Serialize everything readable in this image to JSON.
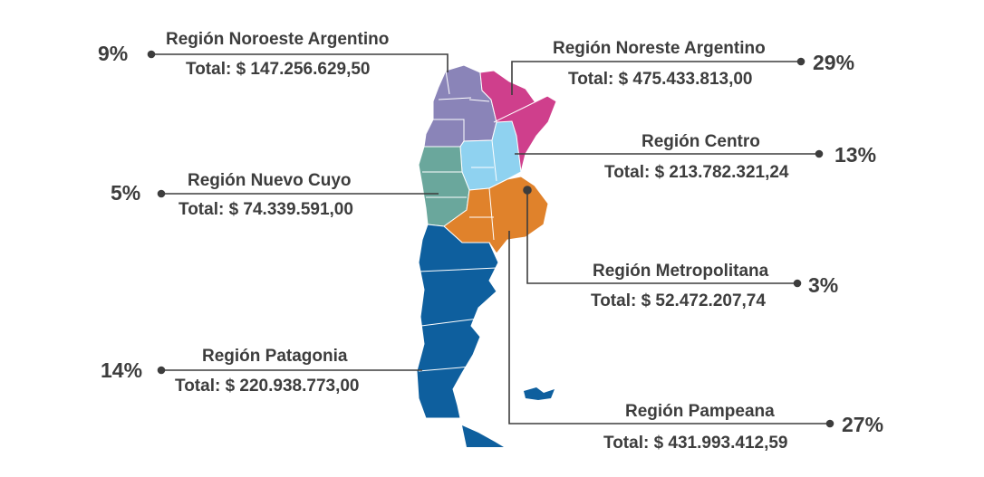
{
  "colors": {
    "text": "#3d3d3d",
    "line": "#3d3d3d",
    "noroeste": "#8a84b8",
    "noreste": "#cf3f8c",
    "centro": "#8fd2f0",
    "cuyo": "#6aa79c",
    "pampeana": "#e0822b",
    "patagonia": "#0e5f9e"
  },
  "regions": {
    "noroeste": {
      "name": "Región Noroeste Argentino",
      "total": "Total: $ 147.256.629,50",
      "percent": "9%"
    },
    "noreste": {
      "name": "Región Noreste Argentino",
      "total": "Total: $ 475.433.813,00",
      "percent": "29%"
    },
    "centro": {
      "name": "Región Centro",
      "total": "Total: $ 213.782.321,24",
      "percent": "13%"
    },
    "cuyo": {
      "name": "Región Nuevo Cuyo",
      "total": "Total: $ 74.339.591,00",
      "percent": "5%"
    },
    "metropolitana": {
      "name": "Región Metropolitana",
      "total": "Total: $ 52.472.207,74",
      "percent": "3%"
    },
    "patagonia": {
      "name": "Región Patagonia",
      "total": "Total: $ 220.938.773,00",
      "percent": "14%"
    },
    "pampeana": {
      "name": "Región Pampeana",
      "total": "Total: $ 431.993.412,59",
      "percent": "27%"
    }
  }
}
